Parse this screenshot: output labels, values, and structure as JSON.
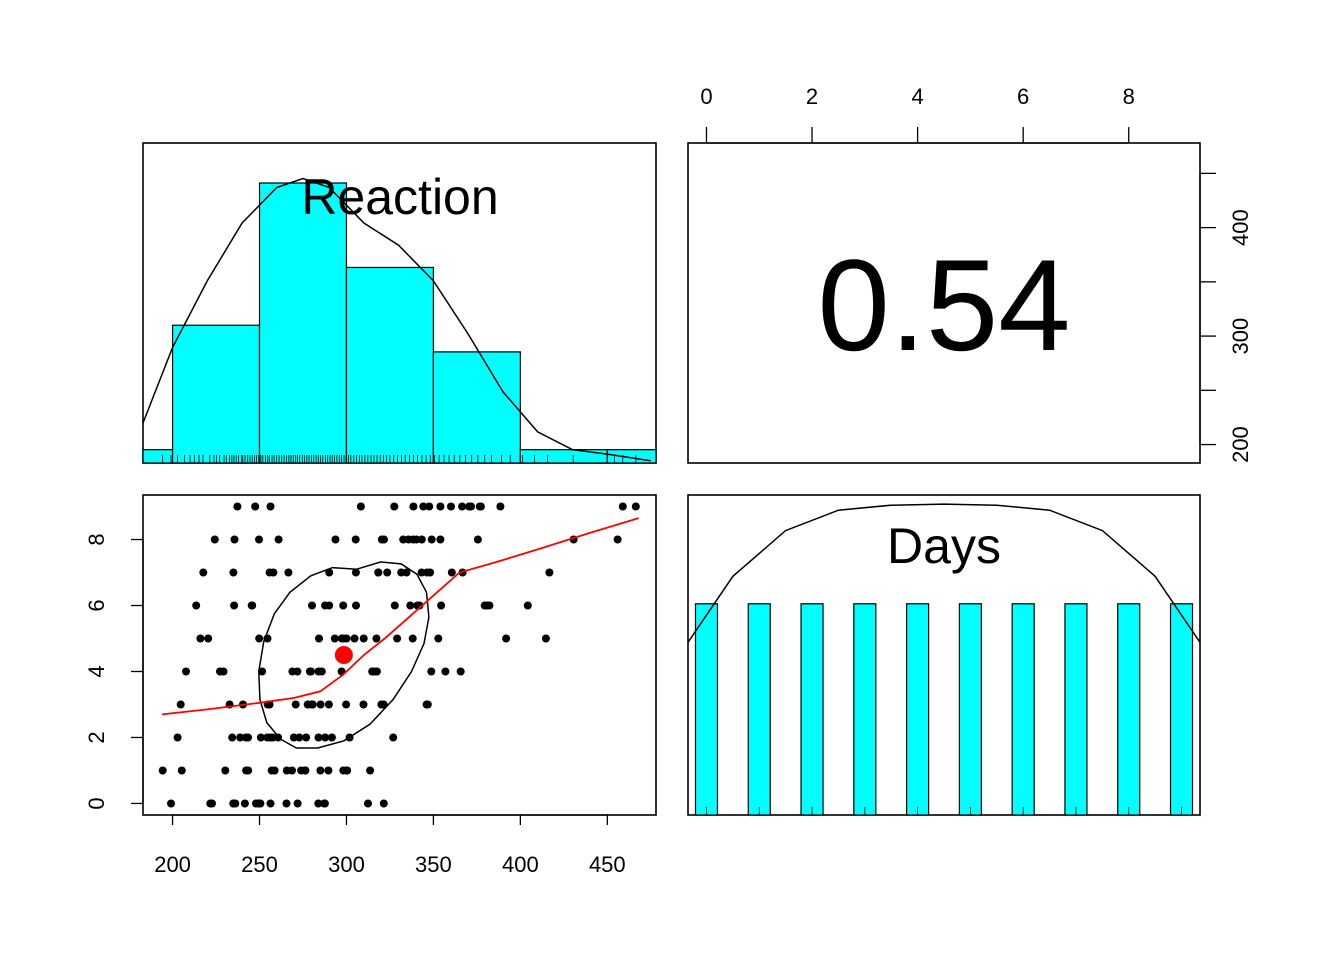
{
  "chart_data": {
    "type": "scatter",
    "variables": [
      "Reaction",
      "Days"
    ],
    "correlation_label": "0.54",
    "panels": {
      "reaction_hist": {
        "type": "bar",
        "title": "Reaction",
        "bins": [
          {
            "x0": 150,
            "x1": 200,
            "density": 0.0003
          },
          {
            "x0": 200,
            "x1": 250,
            "density": 0.0031
          },
          {
            "x0": 250,
            "x1": 300,
            "density": 0.0063
          },
          {
            "x0": 300,
            "x1": 350,
            "density": 0.0044
          },
          {
            "x0": 350,
            "x1": 400,
            "density": 0.0025
          },
          {
            "x0": 400,
            "x1": 450,
            "density": 0.0003
          },
          {
            "x0": 450,
            "x1": 500,
            "density": 0.0003
          }
        ],
        "density_curve": {
          "x": [
            183,
            200,
            220,
            240,
            260,
            275,
            290,
            310,
            330,
            350,
            370,
            390,
            410,
            430,
            450,
            475
          ],
          "y": [
            0.0009,
            0.0026,
            0.0041,
            0.0054,
            0.0062,
            0.0064,
            0.0062,
            0.0054,
            0.0049,
            0.0041,
            0.0029,
            0.0016,
            0.0007,
            0.0003,
            0.0002,
            5e-05
          ]
        },
        "rug": [
          194.3,
          199.1,
          202.9,
          206.8,
          210.1,
          212.6,
          215.2,
          217.5,
          221.4,
          223.8,
          225.3,
          227.1,
          229.6,
          230.9,
          232.8,
          234.1,
          235.3,
          236.6,
          237.9,
          239.8,
          240.4,
          241.7,
          243.2,
          244.5,
          245.8,
          247.1,
          248.3,
          249.6,
          250.8,
          251.9,
          253.4,
          254.7,
          255.6,
          257.2,
          258.4,
          259.9,
          261.3,
          262.8,
          264.2,
          265.5,
          266.9,
          268.1,
          269.4,
          270.8,
          271.9,
          273.1,
          274.6,
          275.8,
          277.2,
          278.5,
          279.9,
          281.2,
          282.6,
          283.8,
          285.1,
          286.4,
          287.9,
          289.2,
          290.6,
          291.8,
          293.1,
          294.5,
          295.9,
          297.2,
          298.6,
          299.8,
          301.1,
          302.5,
          304.2,
          305.8,
          307.4,
          308.9,
          310.6,
          312.3,
          314.1,
          315.8,
          317.6,
          319.4,
          321.2,
          323.1,
          325.0,
          327.2,
          329.4,
          331.6,
          333.8,
          336.2,
          338.6,
          340.9,
          343.4,
          345.8,
          348.2,
          350.7,
          353.3,
          356.1,
          359.0,
          362.0,
          365.2,
          368.5,
          372.0,
          375.6,
          379.5,
          383.4,
          389.1,
          394.2,
          401.3,
          408.1,
          415.7,
          430.4,
          454.2,
          458.9,
          466.4
        ],
        "xlim": [
          183,
          478
        ],
        "ylim": [
          0,
          0.0072
        ]
      },
      "scatter": {
        "x_variable": "Reaction",
        "y_variable": "Days",
        "points": [
          [
            249.6,
            0
          ],
          [
            258.7,
            1
          ],
          [
            250.8,
            2
          ],
          [
            321.4,
            3
          ],
          [
            356.9,
            4
          ],
          [
            414.7,
            5
          ],
          [
            382.2,
            6
          ],
          [
            290.1,
            7
          ],
          [
            430.6,
            8
          ],
          [
            466.4,
            9
          ],
          [
            222.7,
            0
          ],
          [
            205.3,
            1
          ],
          [
            202.9,
            2
          ],
          [
            204.7,
            3
          ],
          [
            207.7,
            4
          ],
          [
            216.0,
            5
          ],
          [
            213.6,
            6
          ],
          [
            217.7,
            7
          ],
          [
            224.3,
            8
          ],
          [
            237.3,
            9
          ],
          [
            199.1,
            0
          ],
          [
            194.3,
            1
          ],
          [
            234.3,
            2
          ],
          [
            232.8,
            3
          ],
          [
            229.3,
            4
          ],
          [
            220.5,
            5
          ],
          [
            235.4,
            6
          ],
          [
            255.8,
            7
          ],
          [
            261.0,
            8
          ],
          [
            247.5,
            9
          ],
          [
            321.5,
            0
          ],
          [
            300.4,
            1
          ],
          [
            283.9,
            2
          ],
          [
            285.1,
            3
          ],
          [
            285.8,
            4
          ],
          [
            297.6,
            5
          ],
          [
            280.2,
            6
          ],
          [
            318.3,
            7
          ],
          [
            305.3,
            8
          ],
          [
            354.0,
            9
          ],
          [
            287.6,
            0
          ],
          [
            285.0,
            1
          ],
          [
            301.8,
            2
          ],
          [
            320.1,
            3
          ],
          [
            316.3,
            4
          ],
          [
            293.3,
            5
          ],
          [
            290.1,
            6
          ],
          [
            334.5,
            7
          ],
          [
            293.7,
            8
          ],
          [
            371.6,
            9
          ],
          [
            234.9,
            0
          ],
          [
            242.3,
            1
          ],
          [
            272.9,
            2
          ],
          [
            309.8,
            3
          ],
          [
            317.5,
            4
          ],
          [
            309.9,
            5
          ],
          [
            342.0,
            6
          ],
          [
            318.3,
            7
          ],
          [
            332.6,
            8
          ],
          [
            327.5,
            9
          ],
          [
            283.8,
            0
          ],
          [
            289.6,
            1
          ],
          [
            276.8,
            2
          ],
          [
            299.8,
            3
          ],
          [
            297.2,
            4
          ],
          [
            338.1,
            5
          ],
          [
            340.8,
            6
          ],
          [
            305.4,
            7
          ],
          [
            354.0,
            8
          ],
          [
            360.1,
            9
          ],
          [
            265.5,
            0
          ],
          [
            276.2,
            1
          ],
          [
            243.4,
            2
          ],
          [
            254.7,
            3
          ],
          [
            279.0,
            4
          ],
          [
            284.2,
            5
          ],
          [
            305.5,
            6
          ],
          [
            331.5,
            7
          ],
          [
            335.7,
            8
          ],
          [
            377.3,
            9
          ],
          [
            241.6,
            0
          ],
          [
            273.9,
            1
          ],
          [
            254.5,
            2
          ],
          [
            270.8,
            3
          ],
          [
            251.5,
            4
          ],
          [
            254.6,
            5
          ],
          [
            245.5,
            6
          ],
          [
            235.0,
            7
          ],
          [
            235.6,
            8
          ],
          [
            256.3,
            9
          ],
          [
            312.4,
            0
          ],
          [
            313.6,
            1
          ],
          [
            291.6,
            2
          ],
          [
            346.1,
            3
          ],
          [
            365.7,
            4
          ],
          [
            391.8,
            5
          ],
          [
            404.3,
            6
          ],
          [
            416.7,
            7
          ],
          [
            455.9,
            8
          ],
          [
            458.9,
            9
          ],
          [
            236.1,
            0
          ],
          [
            230.3,
            1
          ],
          [
            238.9,
            2
          ],
          [
            240.5,
            3
          ],
          [
            227.3,
            4
          ],
          [
            249.8,
            5
          ],
          [
            245.8,
            6
          ],
          [
            258.0,
            7
          ],
          [
            249.7,
            8
          ],
          [
            308.3,
            9
          ],
          [
            256.3,
            0
          ],
          [
            243.5,
            1
          ],
          [
            256.2,
            2
          ],
          [
            255.5,
            3
          ],
          [
            268.9,
            4
          ],
          [
            329.1,
            5
          ],
          [
            379.5,
            6
          ],
          [
            366.8,
            7
          ],
          [
            343.3,
            8
          ],
          [
            344.2,
            9
          ],
          [
            250.5,
            0
          ],
          [
            300.1,
            1
          ],
          [
            269.8,
            2
          ],
          [
            280.6,
            3
          ],
          [
            271.8,
            4
          ],
          [
            304.6,
            5
          ],
          [
            287.7,
            6
          ],
          [
            266.6,
            7
          ],
          [
            321.6,
            8
          ],
          [
            347.6,
            9
          ],
          [
            221.7,
            0
          ],
          [
            298.2,
            1
          ],
          [
            326.9,
            2
          ],
          [
            346.8,
            3
          ],
          [
            348.8,
            4
          ],
          [
            352.8,
            5
          ],
          [
            354.4,
            6
          ],
          [
            360.6,
            7
          ],
          [
            375.6,
            8
          ],
          [
            388.5,
            9
          ],
          [
            271.9,
            0
          ],
          [
            268.7,
            1
          ],
          [
            257.7,
            2
          ],
          [
            277.7,
            3
          ],
          [
            314.8,
            4
          ],
          [
            317.2,
            5
          ],
          [
            298.1,
            6
          ],
          [
            348.1,
            7
          ],
          [
            340.3,
            8
          ],
          [
            366.5,
            9
          ],
          [
            287.2,
            0
          ],
          [
            276.4,
            1
          ],
          [
            260.7,
            2
          ],
          [
            289.9,
            3
          ],
          [
            314.9,
            4
          ],
          [
            298.1,
            5
          ],
          [
            327.8,
            6
          ],
          [
            346.3,
            7
          ],
          [
            349.0,
            8
          ],
          [
            370.5,
            9
          ],
          [
            234.9,
            0
          ],
          [
            257.0,
            1
          ],
          [
            242.2,
            2
          ],
          [
            255.8,
            3
          ],
          [
            283.9,
            4
          ],
          [
            297.3,
            5
          ],
          [
            380.7,
            6
          ],
          [
            343.2,
            7
          ],
          [
            320.4,
            8
          ],
          [
            338.5,
            9
          ],
          [
            248.0,
            0
          ],
          [
            265.7,
            1
          ],
          [
            287.7,
            2
          ],
          [
            279.9,
            3
          ],
          [
            279.6,
            4
          ],
          [
            300.0,
            5
          ],
          [
            336.7,
            6
          ],
          [
            323.4,
            7
          ],
          [
            338.3,
            8
          ],
          [
            376.7,
            9
          ]
        ],
        "mean_point": {
          "x": 298.5,
          "y": 4.5
        },
        "loess": {
          "x": [
            194,
            220,
            250,
            270,
            285,
            298,
            310,
            322,
            335,
            350,
            365,
            385,
            410,
            440,
            468
          ],
          "y": [
            2.7,
            2.85,
            3.05,
            3.2,
            3.4,
            3.9,
            4.5,
            5.0,
            5.6,
            6.3,
            7.0,
            7.3,
            7.7,
            8.2,
            8.65
          ]
        },
        "ellipse": {
          "cx": 298.5,
          "cy": 4.5,
          "points": [
            [
              305.9,
              7.1
            ],
            [
              319.5,
              7.32
            ],
            [
              331.4,
              7.26
            ],
            [
              340.5,
              6.95
            ],
            [
              346.0,
              6.4
            ],
            [
              347.4,
              5.65
            ],
            [
              344.6,
              4.85
            ],
            [
              337.4,
              4.0
            ],
            [
              326.8,
              3.15
            ],
            [
              313.5,
              2.4
            ],
            [
              298.5,
              1.9
            ],
            [
              283.5,
              1.68
            ],
            [
              271.2,
              1.68
            ],
            [
              262.0,
              1.95
            ],
            [
              254.2,
              2.45
            ],
            [
              250.2,
              3.15
            ],
            [
              249.6,
              4.0
            ],
            [
              252.4,
              4.9
            ],
            [
              258.5,
              5.75
            ],
            [
              267.5,
              6.4
            ],
            [
              279.5,
              6.9
            ],
            [
              292.0,
              7.15
            ],
            [
              305.9,
              7.1
            ]
          ]
        },
        "xlim": [
          183,
          478
        ],
        "ylim": [
          -0.35,
          9.35
        ],
        "xticks": [
          200,
          250,
          300,
          350,
          400,
          450
        ],
        "yticks": [
          0,
          2,
          4,
          6,
          8
        ]
      },
      "days_hist": {
        "type": "bar",
        "title": "Days",
        "categories": [
          0,
          1,
          2,
          3,
          4,
          5,
          6,
          7,
          8,
          9
        ],
        "values": [
          18,
          18,
          18,
          18,
          18,
          18,
          18,
          18,
          18,
          18
        ],
        "density_curve": {
          "x": [
            -0.35,
            0.5,
            1.5,
            2.5,
            3.5,
            4.5,
            5.5,
            6.5,
            7.5,
            8.5,
            9.35
          ],
          "y": [
            0.34,
            0.47,
            0.56,
            0.6,
            0.61,
            0.612,
            0.61,
            0.6,
            0.56,
            0.47,
            0.34
          ]
        },
        "xlim": [
          -0.35,
          9.35
        ],
        "ylim": [
          0,
          0.63
        ]
      },
      "correlation_panel": {
        "top_axis_variable": "Days",
        "right_axis_variable": "Reaction",
        "xticks": [
          0,
          2,
          4,
          6,
          8
        ],
        "yticks": [
          200,
          250,
          300,
          350,
          400,
          450
        ],
        "ytick_labels_shown": [
          200,
          300,
          400
        ]
      }
    }
  }
}
